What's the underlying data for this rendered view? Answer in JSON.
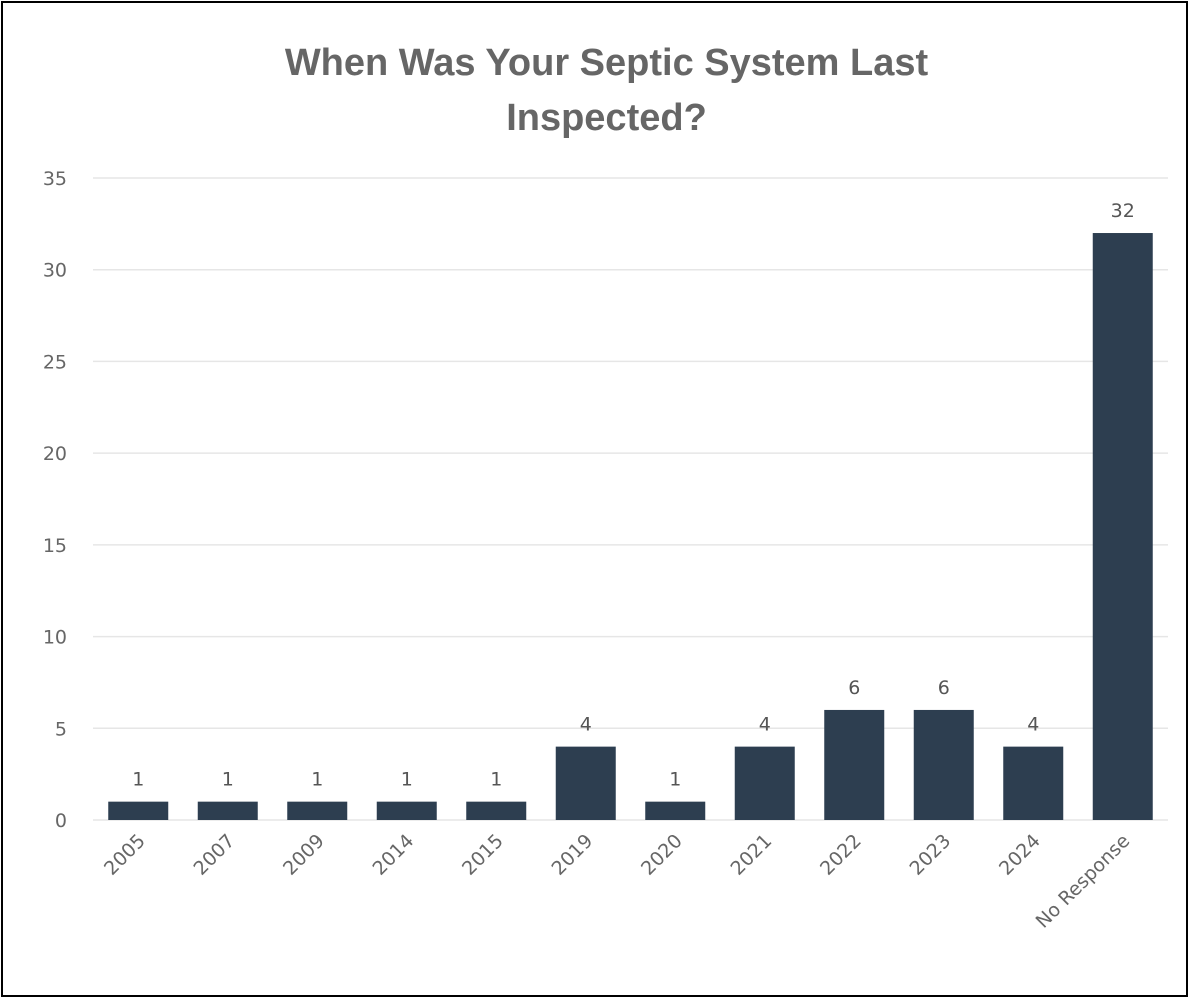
{
  "chart_data": {
    "type": "bar",
    "title": "When Was Your Septic System Last Inspected?",
    "title_lines": [
      "When Was Your Septic System Last",
      "Inspected?"
    ],
    "xlabel": "",
    "ylabel": "",
    "categories": [
      "2005",
      "2007",
      "2009",
      "2014",
      "2015",
      "2019",
      "2020",
      "2021",
      "2022",
      "2023",
      "2024",
      "No Response"
    ],
    "values": [
      1,
      1,
      1,
      1,
      1,
      4,
      1,
      4,
      6,
      6,
      4,
      32
    ],
    "ylim": [
      0,
      35
    ],
    "yticks": [
      0,
      5,
      10,
      15,
      20,
      25,
      30,
      35
    ],
    "grid": true,
    "legend": "none",
    "data_labels": true,
    "bar_color": "#2d3e50",
    "grid_color": "#e6e6e6",
    "text_color": "#666666"
  }
}
